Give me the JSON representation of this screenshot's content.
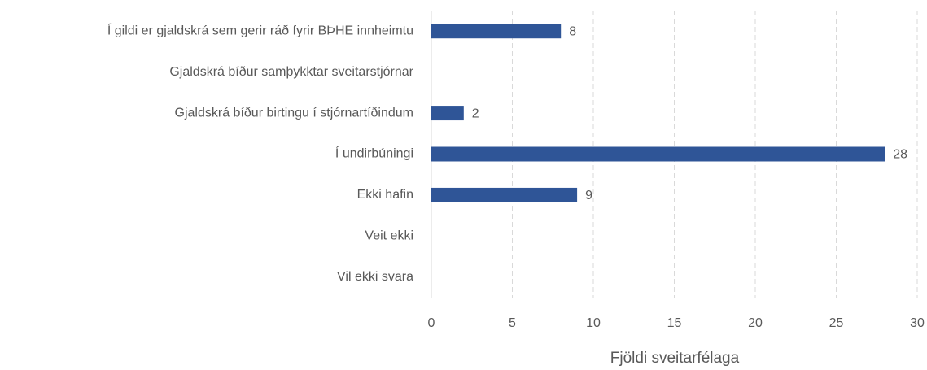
{
  "chart_data": {
    "type": "barh",
    "categories": [
      "Í gildi er gjaldskrá sem gerir ráð fyrir BÞHE innheimtu",
      "Gjaldskrá bíður samþykktar sveitarstjórnar",
      "Gjaldskrá bíður birtingu í stjórnartíðindum",
      "Í undirbúningi",
      "Ekki hafin",
      "Veit ekki",
      "Vil ekki svara"
    ],
    "values": [
      8,
      null,
      2,
      28,
      9,
      null,
      null
    ],
    "color": "#2f5597",
    "xlabel": "Fjöldi sveitarfélaga",
    "xlim": [
      0,
      30
    ],
    "xticks": [
      0,
      5,
      10,
      15,
      20,
      25,
      30
    ],
    "grid": true
  }
}
